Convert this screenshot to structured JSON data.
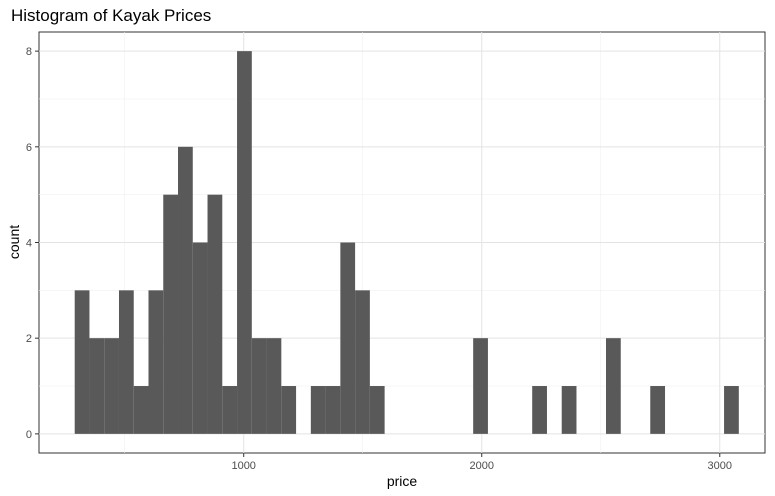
{
  "chart_data": {
    "type": "bar",
    "title": "Histogram of Kayak Prices",
    "xlabel": "price",
    "ylabel": "count",
    "xlim": [
      140,
      3190
    ],
    "ylim": [
      -0.4,
      8.4
    ],
    "x_ticks": [
      1000,
      2000,
      3000
    ],
    "y_ticks": [
      0,
      2,
      4,
      6,
      8
    ],
    "bin_width": 62,
    "grid": true,
    "bar_color": "#595959",
    "bins": [
      {
        "x0": 290,
        "count": 3
      },
      {
        "x0": 352,
        "count": 2
      },
      {
        "x0": 414,
        "count": 2
      },
      {
        "x0": 476,
        "count": 3
      },
      {
        "x0": 538,
        "count": 1
      },
      {
        "x0": 600,
        "count": 3
      },
      {
        "x0": 662,
        "count": 5
      },
      {
        "x0": 724,
        "count": 6
      },
      {
        "x0": 786,
        "count": 4
      },
      {
        "x0": 848,
        "count": 5
      },
      {
        "x0": 910,
        "count": 1
      },
      {
        "x0": 972,
        "count": 8
      },
      {
        "x0": 1034,
        "count": 2
      },
      {
        "x0": 1096,
        "count": 2
      },
      {
        "x0": 1158,
        "count": 1
      },
      {
        "x0": 1282,
        "count": 1
      },
      {
        "x0": 1344,
        "count": 1
      },
      {
        "x0": 1406,
        "count": 4
      },
      {
        "x0": 1468,
        "count": 3
      },
      {
        "x0": 1530,
        "count": 1
      },
      {
        "x0": 1964,
        "count": 2
      },
      {
        "x0": 2212,
        "count": 1
      },
      {
        "x0": 2336,
        "count": 1
      },
      {
        "x0": 2522,
        "count": 2
      },
      {
        "x0": 2708,
        "count": 1
      },
      {
        "x0": 3018,
        "count": 1
      }
    ]
  }
}
